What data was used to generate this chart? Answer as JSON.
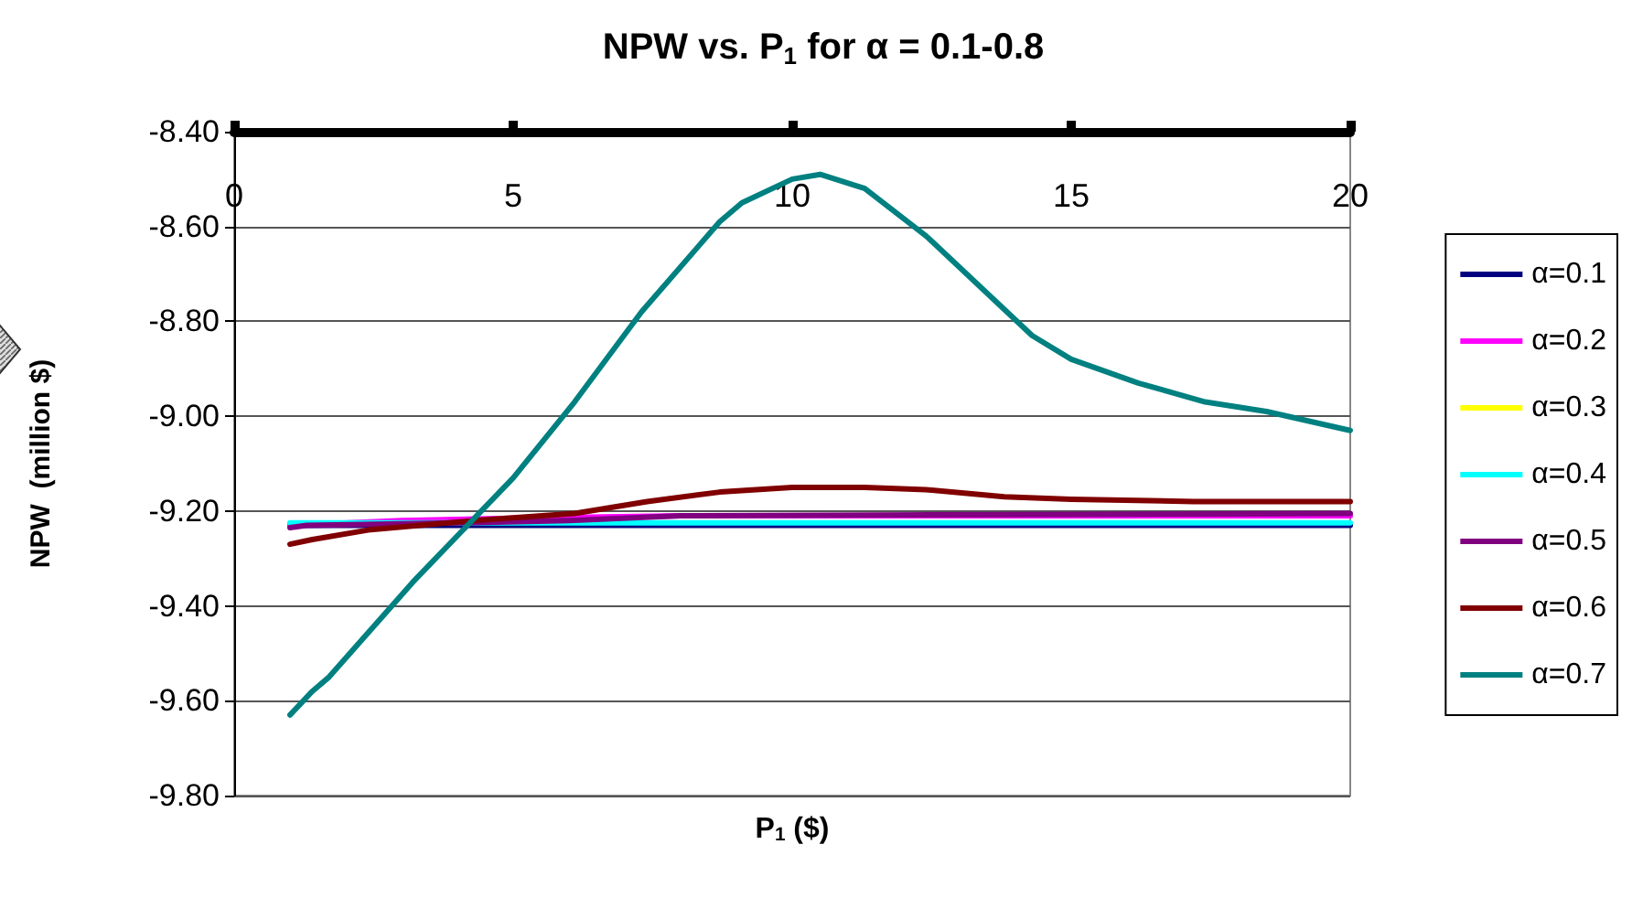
{
  "chart_data": {
    "type": "line",
    "title": "NPW vs. P$_{1}$ for α = 0.1-0.8",
    "xlabel": "P$_{1}$ ($)",
    "ylabel": "NPW  (million $)",
    "xlim": [
      0,
      20
    ],
    "xticks": [
      0,
      5,
      10,
      15,
      20
    ],
    "ylim": [
      -9.8,
      -8.4
    ],
    "yticks": [
      {
        "value": -9.8,
        "label": "-9.80"
      },
      {
        "value": -9.6,
        "label": "-9.60"
      },
      {
        "value": -9.4,
        "label": "-9.40"
      },
      {
        "value": -9.2,
        "label": "-9.20"
      },
      {
        "value": -9.0,
        "label": "-9.00"
      },
      {
        "value": -8.8,
        "label": "-8.80"
      },
      {
        "value": -8.6,
        "label": "-8.60"
      },
      {
        "value": -8.4,
        "label": "-8.40"
      }
    ],
    "grid": "y",
    "legend": "right",
    "marker": "none",
    "line_style": "solid",
    "series": [
      {
        "name": "α=0.1",
        "color": "#000080",
        "x": [
          1,
          20
        ],
        "values": [
          -9.23,
          -9.23
        ]
      },
      {
        "name": "α=0.2",
        "color": "#ff00ff",
        "x": [
          1,
          3,
          5,
          8,
          20
        ],
        "values": [
          -9.23,
          -9.22,
          -9.215,
          -9.21,
          -9.21
        ]
      },
      {
        "name": "α=0.3",
        "color": "#ffff00"
      },
      {
        "name": "α=0.4",
        "color": "#00ffff",
        "x": [
          1,
          20
        ],
        "values": [
          -9.225,
          -9.225
        ]
      },
      {
        "name": "α=0.5",
        "color": "#800080",
        "x": [
          1,
          1.3,
          4,
          6,
          8,
          20
        ],
        "values": [
          -9.235,
          -9.23,
          -9.225,
          -9.22,
          -9.21,
          -9.205
        ]
      },
      {
        "name": "α=0.6",
        "color": "#800000",
        "x": [
          1,
          1.4,
          2.4,
          4.3,
          6.1,
          7.4,
          8.7,
          10,
          11.3,
          12.4,
          13.8,
          15,
          17.2,
          20
        ],
        "values": [
          -9.27,
          -9.26,
          -9.24,
          -9.22,
          -9.205,
          -9.18,
          -9.16,
          -9.15,
          -9.15,
          -9.155,
          -9.17,
          -9.175,
          -9.18,
          -9.18
        ]
      },
      {
        "name": "α=0.7",
        "color": "#008080",
        "x": [
          1,
          1.4,
          1.7,
          3.2,
          5,
          6.1,
          7.3,
          8.7,
          9.1,
          10,
          10.5,
          11.3,
          12.4,
          14.3,
          15,
          16.2,
          17.4,
          18.5,
          20
        ],
        "values": [
          -9.63,
          -9.58,
          -9.55,
          -9.35,
          -9.13,
          -8.97,
          -8.78,
          -8.59,
          -8.55,
          -8.5,
          -8.49,
          -8.52,
          -8.62,
          -8.83,
          -8.88,
          -8.93,
          -8.97,
          -8.99,
          -9.03
        ]
      }
    ]
  }
}
